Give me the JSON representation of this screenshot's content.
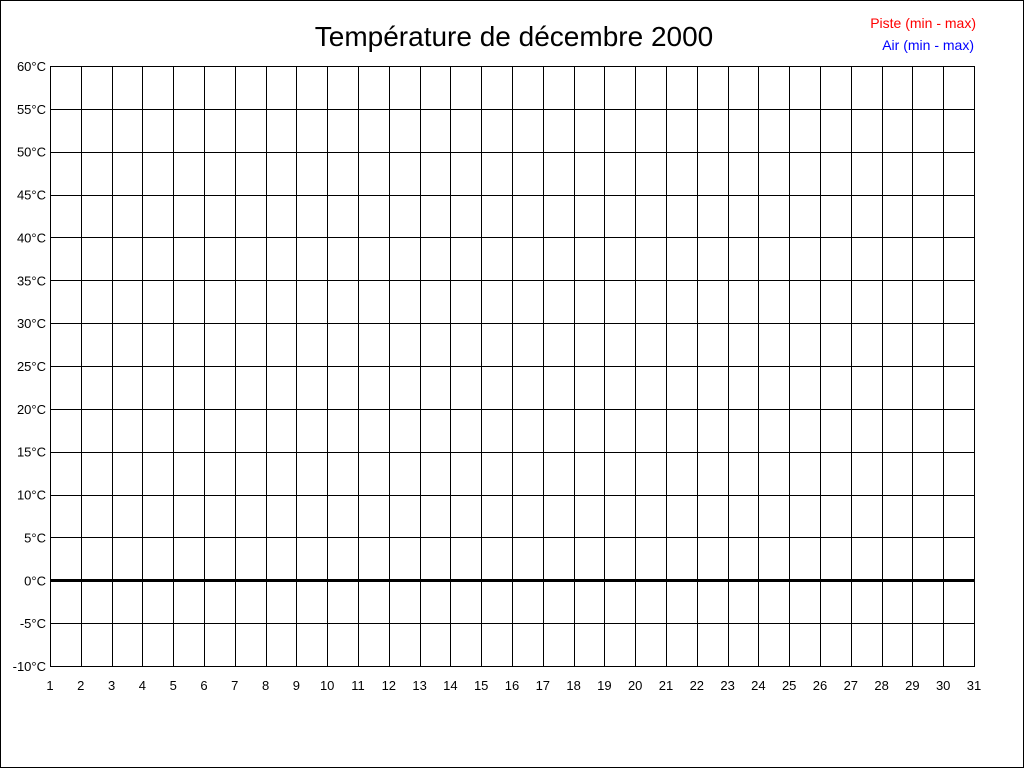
{
  "chart_data": {
    "type": "line",
    "title": "Température de décembre 2000",
    "xlabel": "",
    "ylabel": "",
    "x_ticks": [
      "1",
      "2",
      "3",
      "4",
      "5",
      "6",
      "7",
      "8",
      "9",
      "10",
      "11",
      "12",
      "13",
      "14",
      "15",
      "16",
      "17",
      "18",
      "19",
      "20",
      "21",
      "22",
      "23",
      "24",
      "25",
      "26",
      "27",
      "28",
      "29",
      "30",
      "31"
    ],
    "y_ticks": [
      "60°C",
      "55°C",
      "50°C",
      "45°C",
      "40°C",
      "35°C",
      "30°C",
      "25°C",
      "20°C",
      "15°C",
      "10°C",
      "5°C",
      "0°C",
      "-5°C",
      "-10°C"
    ],
    "xlim": [
      1,
      31
    ],
    "ylim": [
      -10,
      60
    ],
    "grid": true,
    "legend_placement": "top-right",
    "series": [
      {
        "name": "Piste (min - max)",
        "color": "#ff0000",
        "values": []
      },
      {
        "name": "Air (min - max)",
        "color": "#0000ff",
        "values": []
      }
    ]
  }
}
